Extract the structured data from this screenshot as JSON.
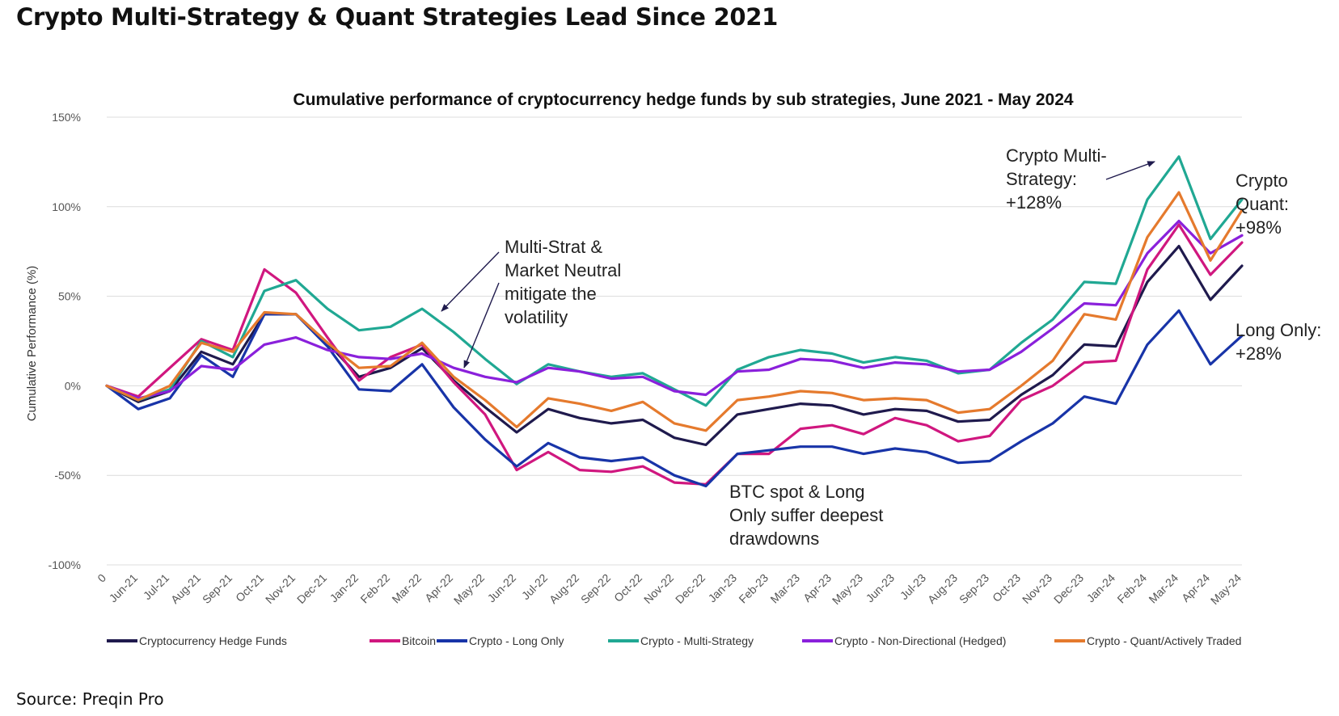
{
  "headline": "Crypto Multi-Strategy & Quant Strategies Lead Since 2021",
  "source": "Source: Preqin Pro",
  "chart_data": {
    "type": "line",
    "title": "Cumulative performance of cryptocurrency hedge funds by sub strategies, June 2021 - May 2024",
    "xlabel": "",
    "ylabel": "Cumulative Performance (%)",
    "ylim": [
      -100,
      150
    ],
    "yticks": [
      150,
      100,
      50,
      0,
      -50,
      -100
    ],
    "ytick_labels": [
      "150%",
      "100%",
      "50%",
      "0%",
      "-50%",
      "-100%"
    ],
    "grid": true,
    "legend_position": "bottom",
    "categories": [
      "0",
      "Jun-21",
      "Jul-21",
      "Aug-21",
      "Sep-21",
      "Oct-21",
      "Nov-21",
      "Dec-21",
      "Jan-22",
      "Feb-22",
      "Mar-22",
      "Apr-22",
      "May-22",
      "Jun-22",
      "Jul-22",
      "Aug-22",
      "Sep-22",
      "Oct-22",
      "Nov-22",
      "Dec-22",
      "Jan-23",
      "Feb-23",
      "Mar-23",
      "Apr-23",
      "May-23",
      "Jun-23",
      "Jul-23",
      "Aug-23",
      "Sep-23",
      "Oct-23",
      "Nov-23",
      "Dec-23",
      "Jan-24",
      "Feb-24",
      "Mar-24",
      "Apr-24",
      "May-24"
    ],
    "series": [
      {
        "name": "Cryptocurrency Hedge Funds",
        "color": "#1f1a4d",
        "values": [
          0,
          -9,
          -3,
          19,
          12,
          40,
          40,
          24,
          5,
          10,
          21,
          3,
          -12,
          -26,
          -13,
          -18,
          -21,
          -19,
          -29,
          -33,
          -16,
          -13,
          -10,
          -11,
          -16,
          -13,
          -14,
          -20,
          -19,
          -5,
          6,
          23,
          22,
          58,
          78,
          48,
          67
        ]
      },
      {
        "name": "Bitcoin",
        "color": "#d0177f",
        "values": [
          0,
          -6,
          10,
          26,
          20,
          65,
          52,
          27,
          3,
          16,
          23,
          2,
          -16,
          -47,
          -37,
          -47,
          -48,
          -45,
          -54,
          -55,
          -38,
          -38,
          -24,
          -22,
          -27,
          -18,
          -22,
          -31,
          -28,
          -8,
          0,
          13,
          14,
          65,
          90,
          62,
          80
        ]
      },
      {
        "name": "Crypto - Long Only",
        "color": "#1834a8",
        "values": [
          0,
          -13,
          -7,
          17,
          5,
          40,
          40,
          22,
          -2,
          -3,
          12,
          -12,
          -30,
          -45,
          -32,
          -40,
          -42,
          -40,
          -50,
          -56,
          -38,
          -36,
          -34,
          -34,
          -38,
          -35,
          -37,
          -43,
          -42,
          -31,
          -21,
          -6,
          -10,
          23,
          42,
          12,
          28
        ]
      },
      {
        "name": "Crypto - Multi-Strategy",
        "color": "#20a893",
        "values": [
          0,
          -8,
          -2,
          25,
          16,
          53,
          59,
          43,
          31,
          33,
          43,
          30,
          15,
          1,
          12,
          8,
          5,
          7,
          -2,
          -11,
          9,
          16,
          20,
          18,
          13,
          16,
          14,
          7,
          9,
          24,
          37,
          58,
          57,
          104,
          128,
          82,
          104
        ]
      },
      {
        "name": "Crypto - Non-Directional (Hedged)",
        "color": "#8a20db",
        "values": [
          0,
          -7,
          -3,
          11,
          9,
          23,
          27,
          20,
          16,
          15,
          18,
          10,
          5,
          2,
          10,
          8,
          4,
          5,
          -3,
          -5,
          8,
          9,
          15,
          14,
          10,
          13,
          12,
          8,
          9,
          19,
          32,
          46,
          45,
          74,
          92,
          74,
          84
        ]
      },
      {
        "name": "Crypto - Quant/Actively Traded",
        "color": "#e57a2d",
        "values": [
          0,
          -8,
          0,
          24,
          19,
          41,
          40,
          24,
          10,
          11,
          24,
          5,
          -8,
          -23,
          -7,
          -10,
          -14,
          -9,
          -21,
          -25,
          -8,
          -6,
          -3,
          -4,
          -8,
          -7,
          -8,
          -15,
          -13,
          0,
          14,
          40,
          37,
          83,
          108,
          70,
          98
        ]
      }
    ],
    "annotations": [
      {
        "lines": [
          "Multi-Strat &",
          "Market Neutral",
          "mitigate the",
          "volatility"
        ]
      },
      {
        "lines": [
          "BTC spot & Long",
          "Only suffer deepest",
          "drawdowns"
        ]
      },
      {
        "lines": [
          "Crypto Multi-",
          "Strategy:",
          "+128%"
        ]
      },
      {
        "lines": [
          "Crypto",
          "Quant:",
          "+98%"
        ]
      },
      {
        "lines": [
          "Long Only:",
          "+28%"
        ]
      }
    ]
  }
}
